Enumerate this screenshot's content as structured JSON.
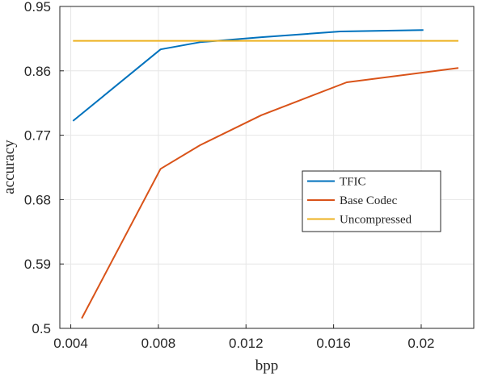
{
  "chart_data": {
    "type": "line",
    "xlabel": "bpp",
    "ylabel": "accuracy",
    "xlim": [
      0.0035,
      0.0224
    ],
    "ylim": [
      0.5,
      0.95
    ],
    "xticks": [
      0.004,
      0.008,
      0.012,
      0.016,
      0.02
    ],
    "xtick_labels": [
      "0.004",
      "0.008",
      "0.012",
      "0.016",
      "0.02"
    ],
    "yticks": [
      0.5,
      0.59,
      0.68,
      0.77,
      0.86,
      0.95
    ],
    "ytick_labels": [
      "0.5",
      "0.59",
      "0.68",
      "0.77",
      "0.86",
      "0.95"
    ],
    "grid": true,
    "legend_position": "center-right",
    "series": [
      {
        "name": "TFIC",
        "color": "#0072BD",
        "x": [
          0.0041,
          0.0081,
          0.0099,
          0.0127,
          0.0163,
          0.0201
        ],
        "y": [
          0.79,
          0.89,
          0.9,
          0.907,
          0.915,
          0.917
        ]
      },
      {
        "name": "Base Codec",
        "color": "#D95319",
        "x": [
          0.0045,
          0.0081,
          0.0099,
          0.0127,
          0.0166,
          0.0217
        ],
        "y": [
          0.514,
          0.723,
          0.756,
          0.798,
          0.844,
          0.864
        ]
      },
      {
        "name": "Uncompressed",
        "color": "#EDB120",
        "x": [
          0.0041,
          0.0217
        ],
        "y": [
          0.902,
          0.902
        ]
      }
    ]
  }
}
